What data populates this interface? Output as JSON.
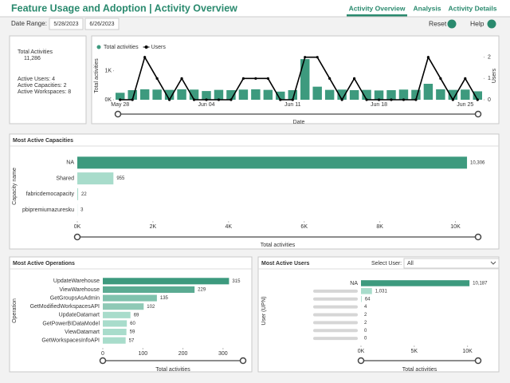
{
  "header": {
    "title": "Feature Usage and Adoption | Activity Overview",
    "tabs": [
      "Activity Overview",
      "Analysis",
      "Activity Details"
    ]
  },
  "filters": {
    "label": "Date Range:",
    "start": "5/28/2023",
    "end": "6/26/2023",
    "reset": "Reset",
    "help": "Help"
  },
  "kpi": {
    "total_label": "Total Activities",
    "total": "11,286",
    "lines": [
      "Active Users: 4",
      "Active Capacities: 2",
      "Active Workspaces: 8"
    ]
  },
  "user_filter": {
    "label": "Select User:",
    "value": "All"
  },
  "chart_data": [
    {
      "type": "combo",
      "x_label": "Date",
      "y_label": "Total activities",
      "y2_label": "Users",
      "categories": [
        "May 28",
        null,
        null,
        null,
        null,
        null,
        null,
        "Jun 04",
        null,
        null,
        null,
        null,
        null,
        null,
        "Jun 11",
        null,
        null,
        null,
        null,
        null,
        null,
        "Jun 18",
        null,
        null,
        null,
        null,
        null,
        null,
        "Jun 25",
        null
      ],
      "series": [
        {
          "name": "Total activities",
          "kind": "bar",
          "color": "#3d9a7e",
          "values": [
            240,
            330,
            360,
            350,
            340,
            360,
            350,
            300,
            340,
            330,
            350,
            360,
            340,
            280,
            330,
            1400,
            450,
            340,
            350,
            330,
            340,
            320,
            330,
            350,
            340,
            550,
            360,
            340,
            350,
            290
          ]
        },
        {
          "name": "Users",
          "kind": "line",
          "axis": "y2",
          "color": "#000000",
          "values": [
            0,
            0,
            2,
            1,
            0,
            1,
            0,
            0,
            0,
            0,
            1,
            1,
            1,
            0,
            0,
            2,
            2,
            1,
            0,
            1,
            0,
            0,
            0,
            0,
            0,
            2,
            1,
            0,
            1,
            0
          ]
        }
      ],
      "ylim": [
        0,
        1650
      ],
      "yticks": [
        {
          "value": 0,
          "label": "0K"
        },
        {
          "value": 1000,
          "label": "1K"
        }
      ],
      "y2lim": [
        0,
        2.25
      ],
      "y2ticks": [
        0,
        1,
        2
      ]
    },
    {
      "type": "hbar",
      "title": "Most Active Capacities",
      "x_label": "Total activities",
      "y_label": "Capacity name",
      "categories": [
        "NA",
        "Shared",
        "fabricdemocapacity",
        "pbipremiumazuresku"
      ],
      "values": [
        10306,
        955,
        22,
        3
      ],
      "value_labels": [
        "10,306",
        "955",
        "22",
        "3"
      ],
      "colors": [
        "#3d9a7e",
        "#a8dccb",
        "#a8dccb",
        "#a8dccb"
      ],
      "xlim": [
        0,
        10600
      ],
      "xticks": [
        {
          "value": 0,
          "label": "0K"
        },
        {
          "value": 2000,
          "label": "2K"
        },
        {
          "value": 4000,
          "label": "4K"
        },
        {
          "value": 6000,
          "label": "6K"
        },
        {
          "value": 8000,
          "label": "8K"
        },
        {
          "value": 10000,
          "label": "10K"
        }
      ]
    },
    {
      "type": "hbar",
      "title": "Most Active Operations",
      "x_label": "Total activities",
      "y_label": "Operation",
      "categories": [
        "UpdateWarehouse",
        "ViewWarehouse",
        "GetGroupsAsAdmin",
        "GetModifiedWorkspacesAPI",
        "UpdateDatamart",
        "GetPowerBIDataModel",
        "ViewDatamart",
        "GetWorkspacesInfoAPI"
      ],
      "values": [
        315,
        229,
        135,
        102,
        69,
        60,
        59,
        57
      ],
      "value_labels": [
        "315",
        "229",
        "135",
        "102",
        "69",
        "60",
        "59",
        "57"
      ],
      "colors": [
        "#3d9a7e",
        "#5aab92",
        "#7fc2ad",
        "#8fc9b6",
        "#a8dccb",
        "#a8dccb",
        "#a8dccb",
        "#a8dccb"
      ],
      "xlim": [
        0,
        350
      ],
      "xticks": [
        0,
        100,
        200,
        300
      ]
    },
    {
      "type": "hbar",
      "title": "Most Active Users",
      "x_label": "Total activities",
      "y_label": "User (UPN)",
      "categories": [
        "NA",
        null,
        null,
        null,
        null,
        null,
        null,
        null
      ],
      "values": [
        10187,
        1031,
        64,
        4,
        2,
        2,
        0,
        0
      ],
      "value_labels": [
        "10,187",
        "1,031",
        "64",
        "4",
        "2",
        "2",
        "0",
        "0"
      ],
      "colors": [
        "#3d9a7e",
        "#a8dccb",
        "#a8dccb",
        "#a8dccb",
        "#a8dccb",
        "#a8dccb",
        "#a8dccb",
        "#a8dccb"
      ],
      "xlim": [
        0,
        11000
      ],
      "xticks": [
        {
          "value": 0,
          "label": "0K"
        },
        {
          "value": 5000,
          "label": "5K"
        },
        {
          "value": 10000,
          "label": "10K"
        }
      ]
    }
  ]
}
